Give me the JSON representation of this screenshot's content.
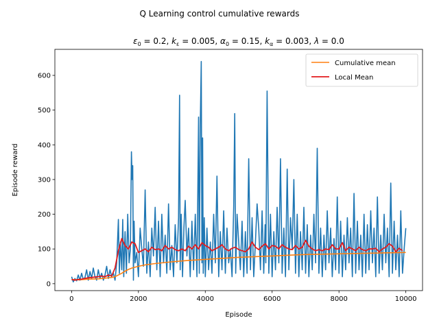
{
  "chart_data": {
    "type": "line",
    "suptitle": "Q Learning control cumulative rewards",
    "subtitle_parts": [
      {
        "t": "ε",
        "s": "i"
      },
      {
        "t": "0",
        "s": "sub"
      },
      {
        "t": " = 0.2, ",
        "s": "n"
      },
      {
        "t": "k",
        "s": "i"
      },
      {
        "t": "ε",
        "s": "sub"
      },
      {
        "t": " = 0.005, ",
        "s": "n"
      },
      {
        "t": "α",
        "s": "i"
      },
      {
        "t": "0",
        "s": "sub"
      },
      {
        "t": " = 0.15, ",
        "s": "n"
      },
      {
        "t": "k",
        "s": "i"
      },
      {
        "t": "α",
        "s": "sub"
      },
      {
        "t": " = 0.003, ",
        "s": "n"
      },
      {
        "t": "λ",
        "s": "i"
      },
      {
        "t": " = 0.0",
        "s": "n"
      }
    ],
    "xlabel": "Episode",
    "ylabel": "Episode reward",
    "xlim": [
      -500,
      10500
    ],
    "ylim": [
      -20,
      675
    ],
    "xticks": [
      0,
      2000,
      4000,
      6000,
      8000,
      10000
    ],
    "yticks": [
      0,
      100,
      200,
      300,
      400,
      500,
      600
    ],
    "legend_position": "upper right",
    "colors": {
      "episode": "#1f77b4",
      "cumulative": "#ff7f0e",
      "local": "#e31a1c"
    },
    "series": [
      {
        "key": "cumulative",
        "name": "Cumulative mean",
        "x": [
          0,
          200,
          500,
          800,
          1000,
          1200,
          1300,
          1400,
          1500,
          1600,
          1700,
          1800,
          2000,
          2200,
          2500,
          3000,
          3500,
          4000,
          4500,
          5000,
          5500,
          6000,
          6500,
          7000,
          7500,
          8000,
          8500,
          9000,
          9500,
          10000
        ],
        "values": [
          12,
          11,
          13,
          14,
          16,
          18,
          20,
          25,
          30,
          36,
          41,
          45,
          50,
          54,
          58,
          63,
          67,
          70,
          73,
          76,
          78,
          80,
          82,
          84,
          85,
          86,
          87,
          88,
          89,
          90
        ]
      },
      {
        "key": "local",
        "name": " Local Mean",
        "x": [
          0,
          100,
          200,
          300,
          400,
          500,
          600,
          700,
          800,
          900,
          1000,
          1100,
          1200,
          1300,
          1400,
          1500,
          1600,
          1700,
          1800,
          1900,
          2000,
          2100,
          2200,
          2300,
          2400,
          2500,
          2600,
          2700,
          2800,
          2900,
          3000,
          3100,
          3200,
          3300,
          3400,
          3500,
          3600,
          3700,
          3800,
          3900,
          4000,
          4100,
          4200,
          4300,
          4400,
          4500,
          4600,
          4700,
          4800,
          4900,
          5000,
          5100,
          5200,
          5300,
          5400,
          5500,
          5600,
          5700,
          5800,
          5900,
          6000,
          6100,
          6200,
          6300,
          6400,
          6500,
          6600,
          6700,
          6800,
          6900,
          7000,
          7100,
          7200,
          7300,
          7400,
          7500,
          7600,
          7700,
          7800,
          7900,
          8000,
          8100,
          8200,
          8300,
          8400,
          8500,
          8600,
          8700,
          8800,
          8900,
          9000,
          9100,
          9200,
          9300,
          9400,
          9500,
          9600,
          9700,
          9800,
          9900
        ],
        "values": [
          12,
          10,
          12,
          13,
          15,
          17,
          18,
          19,
          20,
          22,
          20,
          25,
          22,
          45,
          95,
          130,
          110,
          100,
          120,
          115,
          90,
          95,
          100,
          92,
          105,
          98,
          100,
          95,
          110,
          100,
          105,
          98,
          95,
          100,
          95,
          108,
          100,
          112,
          100,
          118,
          110,
          105,
          95,
          100,
          105,
          112,
          100,
          95,
          102,
          105,
          98,
          95,
          92,
          100,
          120,
          105,
          98,
          108,
          115,
          100,
          110,
          108,
          100,
          112,
          105,
          100,
          98,
          110,
          100,
          105,
          125,
          108,
          100,
          95,
          98,
          95,
          100,
          98,
          112,
          100,
          100,
          118,
          95,
          105,
          100,
          95,
          105,
          98,
          95,
          100,
          100,
          102,
          92,
          100,
          105,
          115,
          108,
          92,
          102,
          95
        ]
      },
      {
        "key": "episode",
        "name": "Episode reward",
        "x": [
          0,
          50,
          100,
          150,
          200,
          250,
          300,
          350,
          400,
          450,
          500,
          550,
          600,
          650,
          700,
          750,
          800,
          850,
          900,
          950,
          1000,
          1050,
          1100,
          1150,
          1200,
          1250,
          1300,
          1350,
          1400,
          1430,
          1460,
          1500,
          1530,
          1560,
          1600,
          1640,
          1680,
          1720,
          1760,
          1790,
          1810,
          1830,
          1850,
          1870,
          1900,
          1950,
          2000,
          2050,
          2100,
          2150,
          2200,
          2250,
          2300,
          2350,
          2400,
          2450,
          2500,
          2550,
          2600,
          2650,
          2700,
          2750,
          2800,
          2850,
          2900,
          2950,
          3000,
          3050,
          3100,
          3150,
          3200,
          3230,
          3250,
          3280,
          3320,
          3360,
          3400,
          3450,
          3500,
          3550,
          3600,
          3650,
          3700,
          3750,
          3800,
          3820,
          3850,
          3880,
          3900,
          3920,
          3940,
          3970,
          4000,
          4050,
          4100,
          4150,
          4200,
          4250,
          4300,
          4350,
          4400,
          4450,
          4500,
          4550,
          4600,
          4650,
          4700,
          4750,
          4800,
          4850,
          4880,
          4910,
          4950,
          5000,
          5050,
          5100,
          5150,
          5200,
          5250,
          5300,
          5350,
          5400,
          5450,
          5500,
          5550,
          5600,
          5650,
          5700,
          5750,
          5790,
          5810,
          5850,
          5900,
          5950,
          6000,
          6050,
          6100,
          6150,
          6200,
          6250,
          6300,
          6350,
          6400,
          6450,
          6500,
          6550,
          6600,
          6650,
          6700,
          6750,
          6800,
          6850,
          6900,
          6950,
          7000,
          7050,
          7100,
          7150,
          7200,
          7250,
          7300,
          7350,
          7400,
          7450,
          7500,
          7550,
          7600,
          7650,
          7700,
          7750,
          7800,
          7850,
          7900,
          7950,
          8000,
          8050,
          8100,
          8150,
          8200,
          8250,
          8300,
          8350,
          8400,
          8450,
          8500,
          8550,
          8600,
          8650,
          8700,
          8750,
          8800,
          8850,
          8900,
          8950,
          9000,
          9050,
          9100,
          9150,
          9200,
          9250,
          9300,
          9350,
          9400,
          9450,
          9500,
          9550,
          9600,
          9650,
          9700,
          9750,
          9800,
          9850,
          9900,
          9950,
          10000
        ],
        "values": [
          20,
          5,
          15,
          8,
          25,
          10,
          30,
          12,
          18,
          40,
          10,
          35,
          15,
          45,
          20,
          10,
          40,
          15,
          30,
          10,
          25,
          50,
          15,
          40,
          20,
          30,
          10,
          60,
          185,
          30,
          120,
          40,
          185,
          20,
          150,
          30,
          200,
          60,
          100,
          380,
          300,
          340,
          10,
          180,
          60,
          90,
          20,
          160,
          100,
          50,
          270,
          30,
          120,
          20,
          160,
          80,
          220,
          40,
          180,
          20,
          200,
          60,
          140,
          30,
          230,
          40,
          110,
          20,
          170,
          60,
          190,
          543,
          40,
          200,
          20,
          160,
          240,
          80,
          160,
          20,
          180,
          40,
          200,
          20,
          480,
          30,
          460,
          640,
          60,
          420,
          30,
          190,
          20,
          160,
          40,
          120,
          30,
          200,
          60,
          310,
          20,
          150,
          40,
          210,
          30,
          160,
          60,
          100,
          20,
          220,
          490,
          30,
          200,
          120,
          40,
          180,
          20,
          150,
          30,
          360,
          40,
          190,
          20,
          120,
          230,
          160,
          40,
          210,
          30,
          170,
          60,
          555,
          30,
          200,
          20,
          150,
          40,
          220,
          60,
          360,
          30,
          160,
          20,
          330,
          40,
          190,
          100,
          300,
          30,
          200,
          20,
          150,
          40,
          220,
          30,
          170,
          20,
          140,
          40,
          200,
          60,
          390,
          30,
          160,
          20,
          140,
          40,
          210,
          60,
          160,
          20,
          130,
          40,
          250,
          30,
          180,
          20,
          140,
          40,
          190,
          60,
          160,
          20,
          260,
          30,
          180,
          40,
          140,
          20,
          200,
          30,
          170,
          40,
          210,
          60,
          160,
          20,
          250,
          30,
          140,
          40,
          200,
          60,
          160,
          20,
          290,
          30,
          180,
          40,
          140,
          20,
          210,
          30,
          100,
          160
        ]
      }
    ]
  }
}
